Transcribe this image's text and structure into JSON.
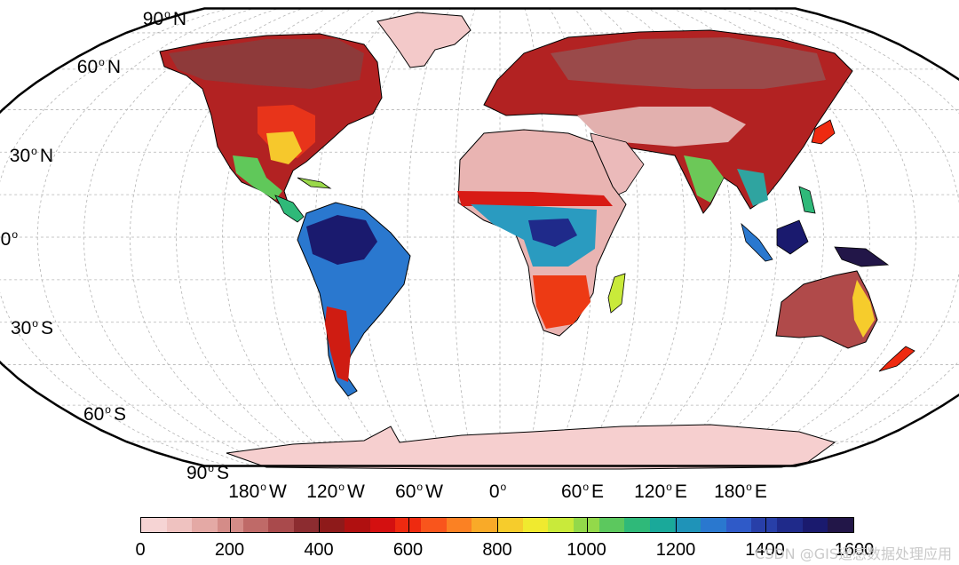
{
  "map": {
    "projection": "Robinson",
    "graticule_spacing_deg": 15,
    "lat_labels": [
      {
        "lat": 90,
        "text": "90",
        "hemi": "N"
      },
      {
        "lat": 60,
        "text": "60",
        "hemi": "N"
      },
      {
        "lat": 30,
        "text": "30",
        "hemi": "N"
      },
      {
        "lat": 0,
        "text": "0",
        "hemi": ""
      },
      {
        "lat": -30,
        "text": "30",
        "hemi": "S"
      },
      {
        "lat": -60,
        "text": "60",
        "hemi": "S"
      },
      {
        "lat": -90,
        "text": "90",
        "hemi": "S"
      }
    ],
    "lon_labels": [
      {
        "text": "180",
        "hemi": "W"
      },
      {
        "text": "120",
        "hemi": "W"
      },
      {
        "text": "60",
        "hemi": "W"
      },
      {
        "text": "0",
        "hemi": ""
      },
      {
        "text": "60",
        "hemi": "E"
      },
      {
        "text": "120",
        "hemi": "E"
      },
      {
        "text": "180",
        "hemi": "E"
      }
    ],
    "colors": {
      "ocean": "#ffffff",
      "graticule": "#b4b4b4",
      "coast": "#000000",
      "low_value_land": "#f5c6c6",
      "tropical_high": "#1a1a6e"
    }
  },
  "colorbar": {
    "min": 0,
    "max": 1600,
    "ticks": [
      "0",
      "200",
      "400",
      "600",
      "800",
      "1000",
      "1200",
      "1400",
      "1600"
    ],
    "palette": [
      "#f6d4d4",
      "#efc2c0",
      "#e4a9a5",
      "#d48c88",
      "#bf6a68",
      "#a94a4c",
      "#8c2c30",
      "#8e1a1a",
      "#b01010",
      "#d41010",
      "#ee2a10",
      "#f9551c",
      "#fb8123",
      "#f9aa28",
      "#f6cc2c",
      "#f0ea2f",
      "#c9ea3a",
      "#93d94a",
      "#5cc85e",
      "#2fb979",
      "#1aa99a",
      "#1f93b8",
      "#2a78cf",
      "#2f5ac8",
      "#283fa8",
      "#1f2a8a",
      "#1a1a6e",
      "#221648"
    ]
  },
  "watermark": "CSDN @GIS遥感数据处理应用"
}
